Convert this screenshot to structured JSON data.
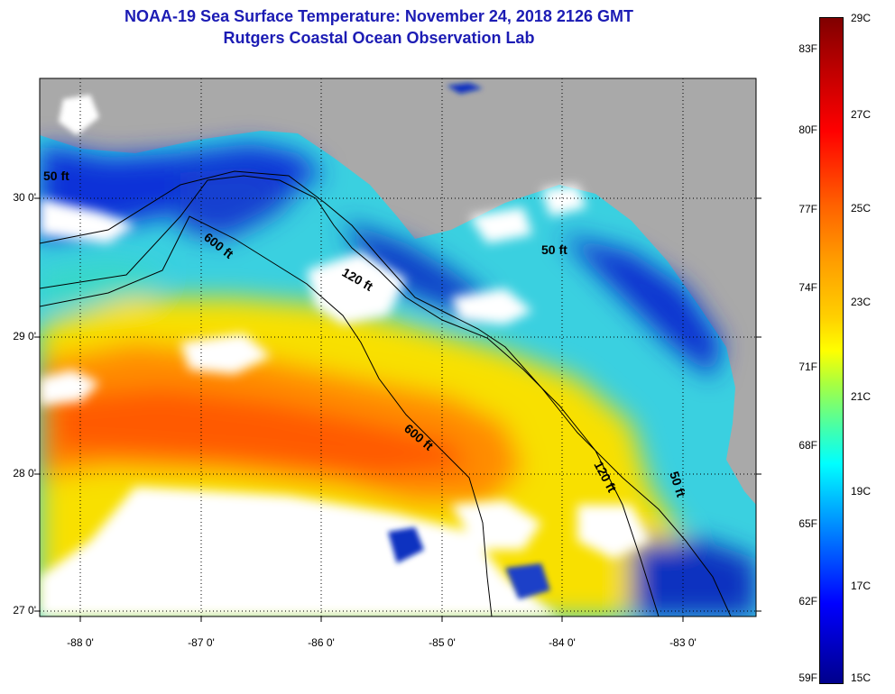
{
  "title": {
    "line1": "NOAA-19 Sea Surface Temperature:  November 24, 2018 2126 GMT",
    "line2": "Rutgers Coastal Ocean Observation Lab"
  },
  "map": {
    "lat_labels": [
      "30 0'",
      "29 0'",
      "28 0'",
      "27 0'"
    ],
    "lon_labels": [
      "-88 0'",
      "-87 0'",
      "-86 0'",
      "-85 0'",
      "-84 0'",
      "-83 0'"
    ],
    "contour_labels": [
      "600 ft",
      "120 ft",
      "50 ft",
      "600 ft",
      "120 ft",
      "50 ft",
      "50 ft"
    ]
  },
  "colorbar": {
    "fahrenheit": [
      "83F",
      "80F",
      "77F",
      "74F",
      "71F",
      "68F",
      "65F",
      "62F",
      "59F"
    ],
    "celsius": [
      "29C",
      "27C",
      "25C",
      "23C",
      "21C",
      "19C",
      "17C",
      "15C"
    ]
  },
  "colors": {
    "title": "#1c1cb4",
    "land": "#a9a9a9",
    "cloud": "#ffffff"
  }
}
